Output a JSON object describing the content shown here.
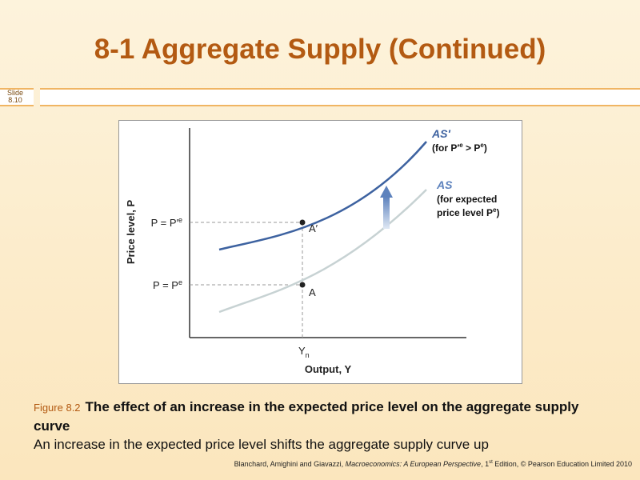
{
  "header": {
    "title": "8-1  Aggregate Supply (Continued)",
    "slide_label": [
      "Slide",
      "8.10"
    ]
  },
  "figure": {
    "y_axis_label": "Price level, P",
    "x_axis_label": "Output, Y",
    "y_tick_upper": {
      "text": "P = P′",
      "sup": "e"
    },
    "y_tick_lower": {
      "text": "P = P",
      "sup": "e"
    },
    "x_tick": {
      "text": "Y",
      "sub": "n"
    },
    "point_upper": "A′",
    "point_lower": "A",
    "curve_upper": {
      "name": "AS′",
      "note": [
        "(for P′",
        "e",
        " > P",
        "e",
        ")"
      ]
    },
    "curve_lower": {
      "name": "AS",
      "note": [
        "(for expected",
        "price level P",
        "e",
        ")"
      ]
    }
  },
  "caption": {
    "figure_number": "Figure 8.2",
    "title": "The effect of an increase in the expected price level on the aggregate supply curve",
    "text": "An increase in the expected price level shifts the aggregate supply curve up"
  },
  "footer": {
    "parts": [
      "Blanchard, Amighini and Giavazzi, ",
      "Macroeconomics: A European Perspective",
      ", 1",
      "st",
      " Edition, © Pearson Education Limited 2010"
    ]
  }
}
